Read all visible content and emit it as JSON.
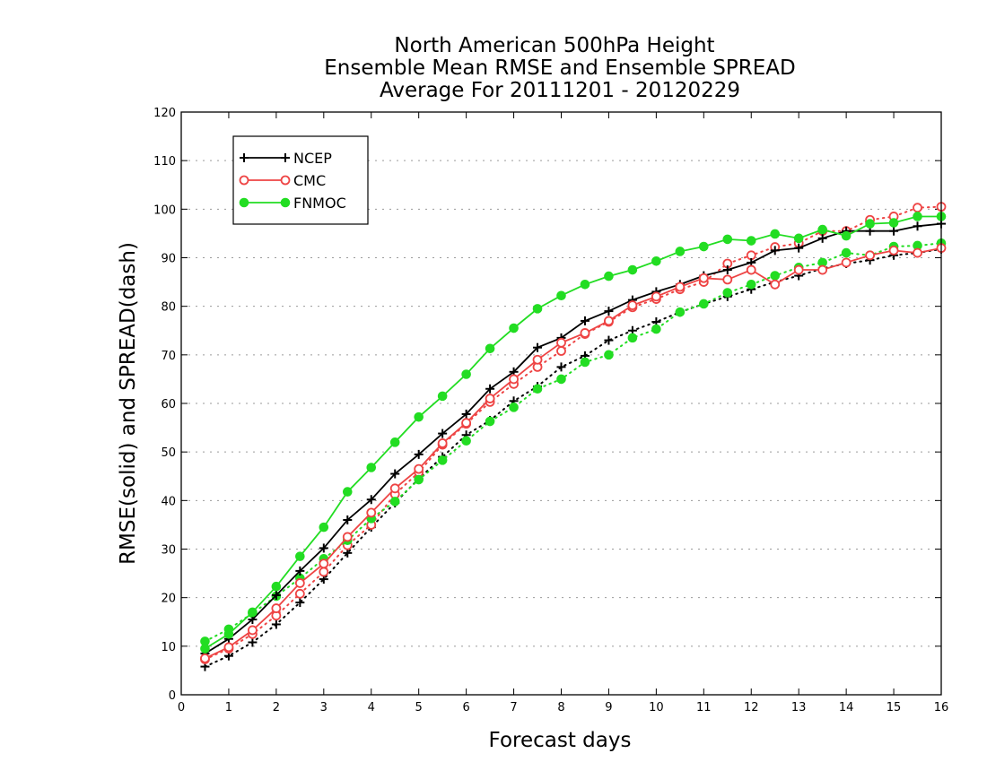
{
  "chart_data": {
    "type": "line",
    "title_lines": [
      "North American 500hPa Height",
      "Ensemble Mean RMSE and Ensemble SPREAD",
      "Average For 20111201 - 20120229"
    ],
    "xlabel": "Forecast days",
    "ylabel": "RMSE(solid) and SPREAD(dash)",
    "xlim": [
      0,
      16
    ],
    "ylim": [
      0,
      120
    ],
    "xticks": [
      "0",
      "1",
      "2",
      "3",
      "4",
      "5",
      "6",
      "7",
      "8",
      "9",
      "10",
      "11",
      "12",
      "13",
      "14",
      "15",
      "16"
    ],
    "yticks": [
      "0",
      "10",
      "20",
      "30",
      "40",
      "50",
      "60",
      "70",
      "80",
      "90",
      "100",
      "110",
      "120"
    ],
    "grid": "horizontal dotted",
    "legend_placement": "top-left",
    "x": [
      0.5,
      1,
      1.5,
      2,
      2.5,
      3,
      3.5,
      4,
      4.5,
      5,
      5.5,
      6,
      6.5,
      7,
      7.5,
      8,
      8.5,
      9,
      9.5,
      10,
      10.5,
      11,
      11.5,
      12,
      12.5,
      13,
      13.5,
      14,
      14.5,
      15,
      15.5,
      16
    ],
    "series": [
      {
        "name": "NCEP",
        "role": "RMSE",
        "line_style": "solid",
        "marker": "plus",
        "color": "#000000",
        "values": [
          8.5,
          11.5,
          15.5,
          20.5,
          25.5,
          30.2,
          36,
          40.2,
          45.5,
          49.5,
          53.8,
          57.8,
          63,
          66.5,
          71.5,
          73.5,
          77,
          79,
          81.3,
          83,
          84.5,
          86.3,
          87.5,
          89,
          91.5,
          92,
          94,
          95.5,
          95.5,
          95.5,
          96.5,
          97
        ]
      },
      {
        "name": "CMC",
        "role": "RMSE",
        "line_style": "solid",
        "marker": "open-circle",
        "color": "#ee4444",
        "values": [
          7.5,
          9.8,
          13.3,
          17.8,
          23,
          27,
          32.5,
          37.5,
          42.5,
          46.5,
          51.8,
          56,
          61,
          65,
          69,
          72.5,
          74.5,
          77,
          80.2,
          82,
          84,
          85.8,
          85.5,
          87.5,
          84.5,
          87.5,
          87.5,
          89,
          90.5,
          91.5,
          91,
          92
        ]
      },
      {
        "name": "FNMOC",
        "role": "RMSE",
        "line_style": "solid",
        "marker": "filled-circle",
        "color": "#22dd22",
        "values": [
          9.5,
          12.5,
          17,
          22.3,
          28.5,
          34.5,
          41.8,
          46.8,
          52,
          57.2,
          61.5,
          66,
          71.3,
          75.5,
          79.5,
          82.2,
          84.5,
          86.2,
          87.5,
          89.3,
          91.3,
          92.3,
          93.8,
          93.5,
          94.9,
          94,
          95.8,
          94.5,
          97,
          97.2,
          98.5,
          98.5
        ]
      },
      {
        "role": "SPREAD",
        "legend_series": "NCEP",
        "line_style": "dotted",
        "marker": "plus",
        "color": "#000000",
        "values": [
          5.8,
          8,
          10.8,
          14.5,
          19,
          23.8,
          29.2,
          34.5,
          39.5,
          44.5,
          49,
          53.5,
          56.5,
          60.5,
          63.5,
          67.5,
          69.8,
          73,
          75,
          76.8,
          78.8,
          80.5,
          82,
          83.5,
          85,
          86.3,
          87.8,
          88.8,
          89.5,
          90.5,
          91,
          91.8
        ]
      },
      {
        "role": "SPREAD",
        "legend_series": "CMC",
        "line_style": "dotted",
        "marker": "open-circle",
        "color": "#ee4444",
        "values": [
          7.3,
          9.5,
          12.5,
          16.3,
          20.8,
          25.3,
          30.8,
          35,
          41.3,
          45.8,
          51.5,
          55.8,
          60.3,
          64,
          67.5,
          70.8,
          74.3,
          76.8,
          79.8,
          81.5,
          83.5,
          85,
          88.8,
          90.5,
          92.2,
          93,
          95.5,
          95.5,
          97.8,
          98.5,
          100.3,
          100.5
        ]
      },
      {
        "role": "SPREAD",
        "legend_series": "FNMOC",
        "line_style": "dotted",
        "marker": "filled-circle",
        "color": "#22dd22",
        "values": [
          11,
          13.5,
          16.8,
          20.3,
          24,
          28,
          31.8,
          36.3,
          39.8,
          44.3,
          48.3,
          52.3,
          56.3,
          59.2,
          63,
          65,
          68.5,
          70,
          73.5,
          75.3,
          78.8,
          80.5,
          82.8,
          84.5,
          86.3,
          88,
          89,
          91,
          90.5,
          92.3,
          92.5,
          93
        ]
      }
    ]
  }
}
